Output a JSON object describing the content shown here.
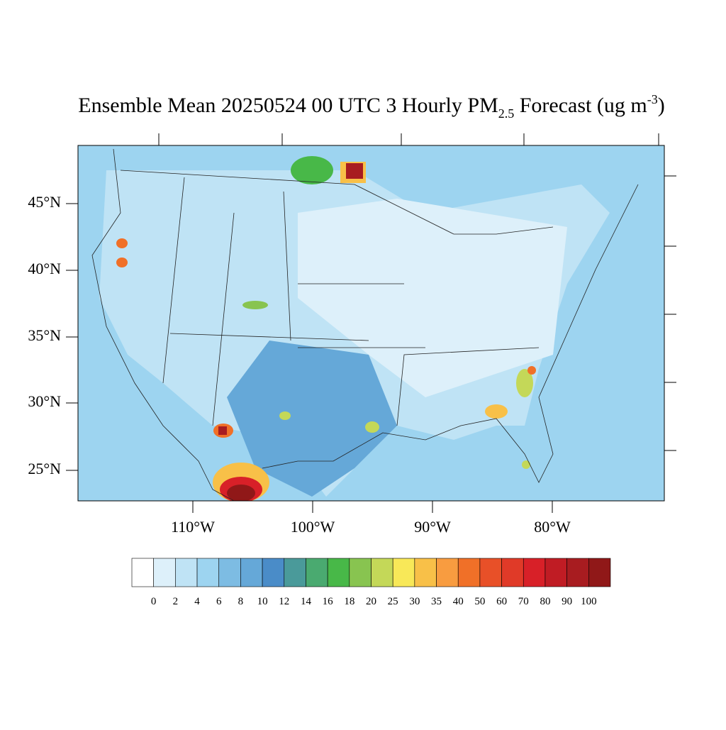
{
  "title": {
    "main": "Ensemble Mean 20250524 00 UTC 3 Hourly PM",
    "sub": "2.5",
    "rest": " Forecast (ug m",
    "sup": "-3",
    "end": ")"
  },
  "map": {
    "lat_labels": [
      "45°N",
      "40°N",
      "35°N",
      "30°N",
      "25°N"
    ],
    "lon_labels": [
      "110°W",
      "100°W",
      "90°W",
      "80°W"
    ]
  },
  "colorbar": {
    "colors": [
      "#ffffff",
      "#ddf0fa",
      "#bfe3f5",
      "#9dd4f0",
      "#7dbce3",
      "#65a8d8",
      "#4a8cc8",
      "#4a9a9a",
      "#4aaa70",
      "#48b848",
      "#88c450",
      "#c4d858",
      "#f8e858",
      "#f8c048",
      "#f89c40",
      "#f07028",
      "#e85028",
      "#e03a28",
      "#d82028",
      "#c01c24",
      "#a81c20",
      "#901818"
    ],
    "levels": [
      0,
      2,
      4,
      6,
      8,
      10,
      12,
      14,
      16,
      18,
      20,
      25,
      30,
      35,
      40,
      50,
      60,
      70,
      80,
      90,
      100
    ]
  }
}
